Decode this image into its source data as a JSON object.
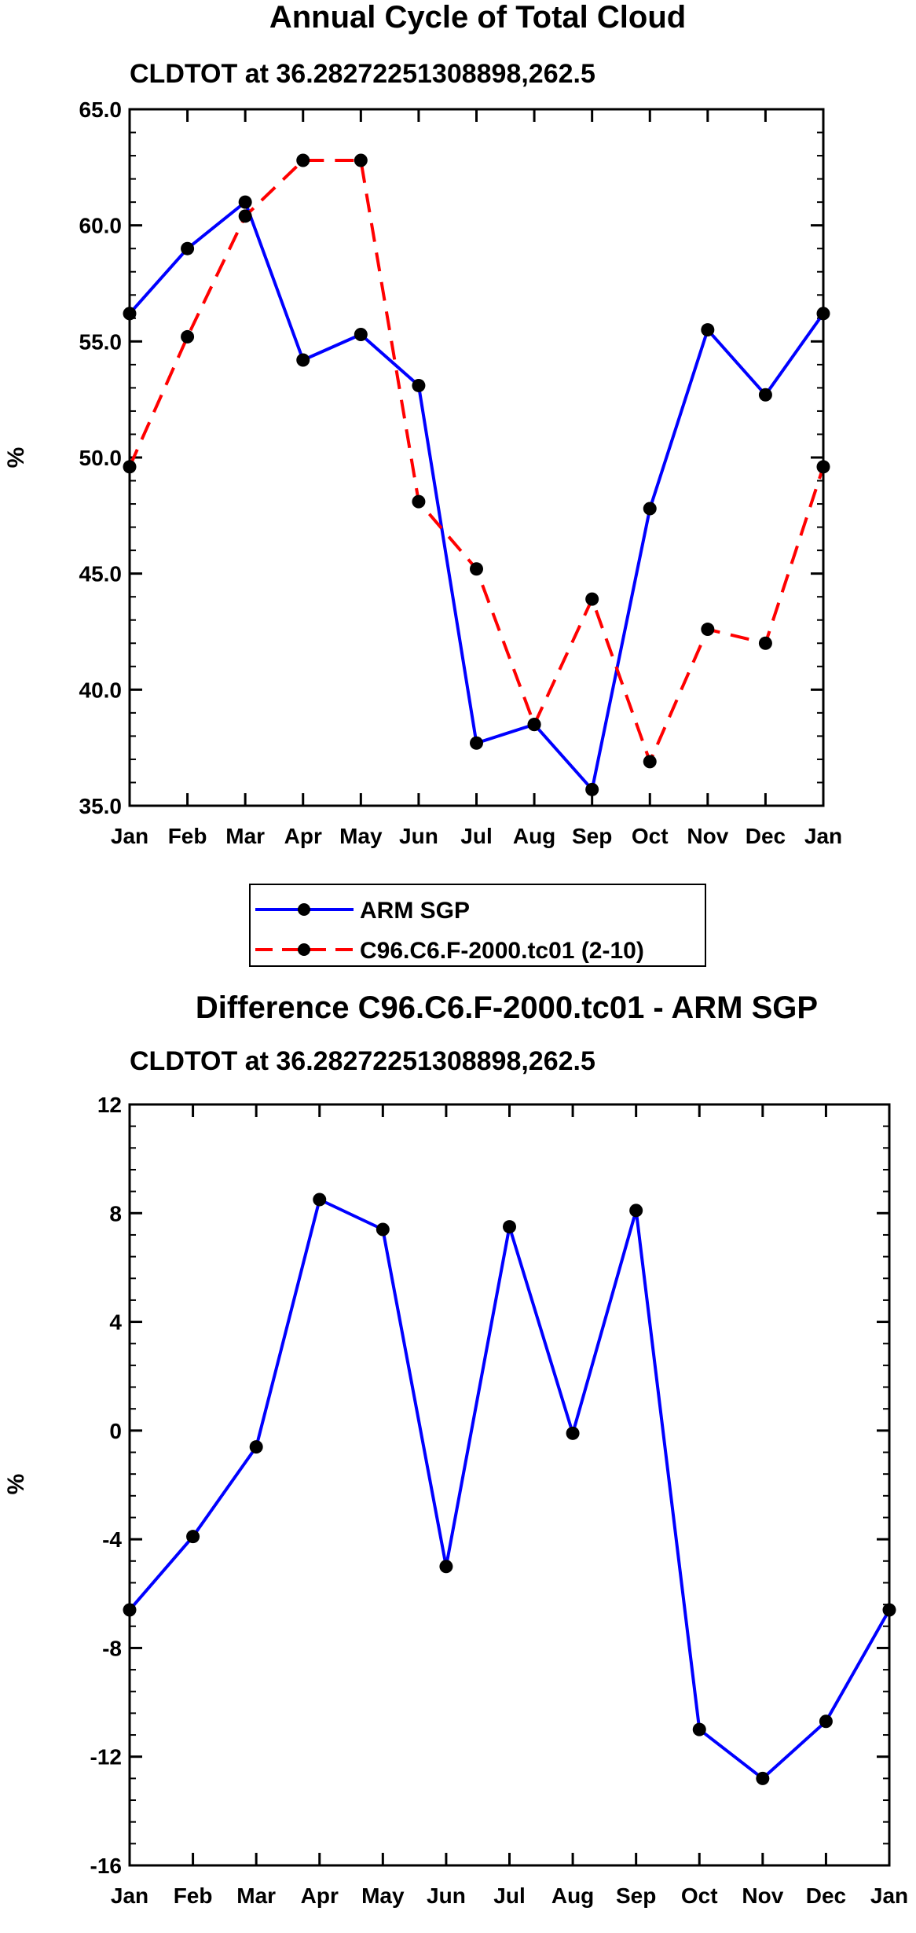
{
  "chart_data": [
    {
      "type": "line",
      "title": "Annual Cycle of Total Cloud",
      "subtitle": "CLDTOT at 36.28272251308898,262.5",
      "xlabel": "",
      "ylabel": "%",
      "categories": [
        "Jan",
        "Feb",
        "Mar",
        "Apr",
        "May",
        "Jun",
        "Jul",
        "Aug",
        "Sep",
        "Oct",
        "Nov",
        "Dec",
        "Jan"
      ],
      "ylim": [
        35.0,
        65.0
      ],
      "yticks": [
        35.0,
        40.0,
        45.0,
        50.0,
        55.0,
        60.0,
        65.0
      ],
      "ytick_labels": [
        "35.0",
        "40.0",
        "45.0",
        "50.0",
        "55.0",
        "60.0",
        "65.0"
      ],
      "grid": false,
      "legend_position": "bottom-center",
      "series": [
        {
          "name": "ARM SGP",
          "color": "#0000ff",
          "dash": "solid",
          "values": [
            56.2,
            59.0,
            61.0,
            54.2,
            55.3,
            53.1,
            37.7,
            38.5,
            35.7,
            47.8,
            55.5,
            52.7,
            56.2
          ]
        },
        {
          "name": "C96.C6.F-2000.tc01 (2-10)",
          "color": "#ff0000",
          "dash": "dashed",
          "values": [
            49.6,
            55.2,
            60.4,
            62.8,
            62.8,
            48.1,
            45.2,
            38.5,
            43.9,
            36.9,
            42.6,
            42.0,
            49.6
          ]
        }
      ]
    },
    {
      "type": "line",
      "title": "Difference C96.C6.F-2000.tc01 - ARM SGP",
      "subtitle": "CLDTOT at 36.28272251308898,262.5",
      "xlabel": "",
      "ylabel": "%",
      "categories": [
        "Jan",
        "Feb",
        "Mar",
        "Apr",
        "May",
        "Jun",
        "Jul",
        "Aug",
        "Sep",
        "Oct",
        "Nov",
        "Dec",
        "Jan"
      ],
      "ylim": [
        -16,
        12
      ],
      "yticks": [
        -16,
        -12,
        -8,
        -4,
        0,
        4,
        8,
        12
      ],
      "ytick_labels": [
        "-16",
        "-12",
        "-8",
        "-4",
        "0",
        "4",
        "8",
        "12"
      ],
      "grid": false,
      "series": [
        {
          "name": "Difference",
          "color": "#0000ff",
          "dash": "solid",
          "values": [
            -6.6,
            -3.9,
            -0.6,
            8.5,
            7.4,
            -5.0,
            7.5,
            -0.1,
            8.1,
            -11.0,
            -12.8,
            -10.7,
            -6.6
          ]
        }
      ]
    }
  ]
}
